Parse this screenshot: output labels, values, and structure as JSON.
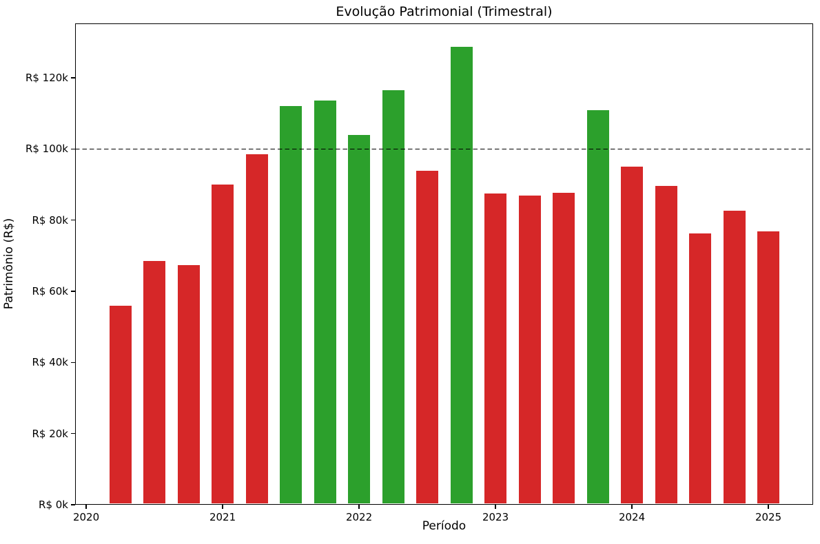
{
  "chart_data": {
    "type": "bar",
    "title": "Evolução Patrimonial (Trimestral)",
    "xlabel": "Período",
    "ylabel": "Patrimônio (R$)",
    "periods": [
      "2020-Q1",
      "2020-Q2",
      "2020-Q3",
      "2020-Q4",
      "2021-Q1",
      "2021-Q2",
      "2021-Q3",
      "2021-Q4",
      "2022-Q1",
      "2022-Q2",
      "2022-Q3",
      "2022-Q4",
      "2023-Q1",
      "2023-Q2",
      "2023-Q3",
      "2023-Q4",
      "2024-Q1",
      "2024-Q2",
      "2024-Q3",
      "2024-Q4"
    ],
    "values": [
      56000,
      68500,
      67400,
      90100,
      98500,
      112000,
      113700,
      103900,
      116600,
      93900,
      128700,
      87400,
      86900,
      87600,
      111000,
      95000,
      89700,
      76300,
      82600,
      76900
    ],
    "threshold": 100000,
    "colors": {
      "above_threshold": "#2ca02c",
      "below_threshold": "#d62728",
      "reference_line": "#000000",
      "axes": "#000000",
      "background": "#ffffff"
    },
    "reference_line": {
      "value": 100000,
      "style": "dashed"
    },
    "x_ticks": [
      {
        "t": 2020,
        "label": "2020"
      },
      {
        "t": 2021,
        "label": "2021"
      },
      {
        "t": 2022,
        "label": "2022"
      },
      {
        "t": 2023,
        "label": "2023"
      },
      {
        "t": 2024,
        "label": "2024"
      },
      {
        "t": 2025,
        "label": "2025"
      }
    ],
    "y_ticks": [
      {
        "value": 0,
        "label": "R$ 0k"
      },
      {
        "value": 20000,
        "label": "R$ 20k"
      },
      {
        "value": 40000,
        "label": "R$ 40k"
      },
      {
        "value": 60000,
        "label": "R$ 60k"
      },
      {
        "value": 80000,
        "label": "R$ 80k"
      },
      {
        "value": 100000,
        "label": "R$ 100k"
      },
      {
        "value": 120000,
        "label": "R$ 120k"
      }
    ],
    "xlim": [
      2019.919,
      2025.328
    ],
    "ylim": [
      0,
      135300
    ],
    "x_start": 2020.25,
    "x_step": 0.25,
    "bar_width_years": 0.1616,
    "grid": false,
    "legend": "none"
  }
}
